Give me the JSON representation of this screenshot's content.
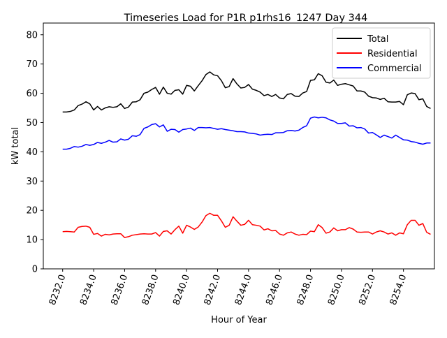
{
  "chart_data": {
    "type": "line",
    "title": "Timeseries Load for P1R p1rhs16_1247  Day 344",
    "xlabel": "Hour of Year",
    "ylabel": "kW total",
    "xlim": [
      8230.75,
      8256.0
    ],
    "ylim": [
      0,
      84
    ],
    "x_ticks": [
      8232,
      8234,
      8236,
      8238,
      8240,
      8242,
      8244,
      8246,
      8248,
      8250,
      8252,
      8254
    ],
    "x_tick_labels": [
      "8232.0",
      "8234.0",
      "8236.0",
      "8238.0",
      "8240.0",
      "8242.0",
      "8244.0",
      "8246.0",
      "8248.0",
      "8250.0",
      "8252.0",
      "8254.0"
    ],
    "y_ticks": [
      0,
      10,
      20,
      30,
      40,
      50,
      60,
      70,
      80
    ],
    "y_tick_labels": [
      "0",
      "10",
      "20",
      "30",
      "40",
      "50",
      "60",
      "70",
      "80"
    ],
    "legend_position": "top-right",
    "x_start": 8232.0,
    "x_step": 0.25,
    "series": [
      {
        "name": "Total",
        "color": "#000000",
        "values": [
          53.6,
          53.6,
          53.8,
          54.3,
          55.8,
          56.3,
          57.1,
          56.4,
          54.3,
          55.5,
          54.3,
          55.0,
          55.4,
          55.2,
          55.4,
          56.4,
          54.8,
          55.3,
          57.0,
          57.1,
          57.8,
          60.0,
          60.4,
          61.3,
          62.0,
          59.7,
          62.1,
          60.0,
          59.7,
          61.0,
          61.2,
          59.7,
          62.7,
          62.4,
          60.8,
          62.6,
          64.3,
          66.4,
          67.3,
          66.3,
          66.0,
          64.3,
          61.9,
          62.3,
          65.0,
          63.2,
          61.8,
          62.0,
          63.0,
          61.4,
          61.0,
          60.4,
          59.2,
          59.6,
          58.9,
          59.6,
          58.4,
          58.1,
          59.6,
          59.9,
          59.0,
          58.9,
          60.1,
          60.6,
          64.4,
          64.6,
          66.7,
          66.0,
          63.8,
          63.5,
          64.5,
          62.7,
          63.1,
          63.3,
          62.9,
          62.5,
          60.8,
          60.8,
          60.4,
          59.0,
          58.5,
          58.4,
          57.9,
          58.3,
          57.1,
          57.0,
          57.0,
          57.2,
          56.1,
          59.5,
          60.1,
          59.9,
          57.8,
          58.1,
          55.5,
          54.8
        ]
      },
      {
        "name": "Residential",
        "color": "#ff0000",
        "values": [
          12.7,
          12.8,
          12.7,
          12.6,
          14.2,
          14.5,
          14.6,
          14.2,
          11.8,
          12.1,
          11.2,
          11.8,
          11.6,
          11.9,
          12.0,
          12.0,
          10.7,
          11.0,
          11.5,
          11.7,
          11.9,
          12.0,
          11.9,
          11.9,
          12.4,
          11.2,
          12.8,
          13.0,
          11.9,
          13.4,
          14.6,
          12.2,
          14.9,
          14.3,
          13.5,
          14.3,
          16.0,
          18.2,
          19.0,
          18.3,
          18.3,
          16.4,
          14.2,
          14.9,
          17.8,
          16.3,
          14.9,
          15.2,
          16.6,
          15.1,
          14.9,
          14.6,
          13.3,
          13.7,
          13.0,
          13.1,
          11.9,
          11.5,
          12.3,
          12.6,
          11.9,
          11.5,
          11.8,
          11.7,
          12.9,
          12.7,
          15.1,
          14.1,
          12.2,
          12.6,
          14.0,
          13.0,
          13.4,
          13.4,
          14.1,
          13.6,
          12.6,
          12.5,
          12.6,
          12.6,
          11.9,
          12.6,
          13.0,
          12.6,
          11.9,
          12.3,
          11.5,
          12.3,
          12.0,
          15.1,
          16.6,
          16.6,
          14.9,
          15.5,
          12.5,
          11.8
        ]
      },
      {
        "name": "Commercial",
        "color": "#0000ff",
        "values": [
          40.9,
          40.9,
          41.2,
          41.8,
          41.6,
          41.9,
          42.5,
          42.2,
          42.5,
          43.2,
          42.9,
          43.3,
          43.9,
          43.3,
          43.4,
          44.4,
          44.0,
          44.3,
          45.5,
          45.3,
          45.9,
          48.0,
          48.5,
          49.3,
          49.6,
          48.5,
          49.2,
          47.0,
          47.7,
          47.6,
          46.7,
          47.6,
          47.8,
          48.1,
          47.3,
          48.3,
          48.3,
          48.2,
          48.3,
          48.0,
          47.7,
          47.9,
          47.6,
          47.4,
          47.2,
          46.9,
          46.9,
          46.8,
          46.4,
          46.3,
          46.1,
          45.7,
          45.9,
          46.0,
          45.9,
          46.5,
          46.5,
          46.6,
          47.2,
          47.3,
          47.1,
          47.4,
          48.3,
          48.9,
          51.5,
          51.9,
          51.6,
          51.8,
          51.6,
          50.9,
          50.5,
          49.7,
          49.7,
          49.9,
          48.8,
          48.9,
          48.2,
          48.3,
          47.8,
          46.4,
          46.6,
          45.8,
          44.9,
          45.7,
          45.2,
          44.7,
          45.7,
          44.9,
          44.1,
          44.0,
          43.5,
          43.3,
          42.9,
          42.6,
          43.0,
          43.0
        ]
      }
    ]
  }
}
